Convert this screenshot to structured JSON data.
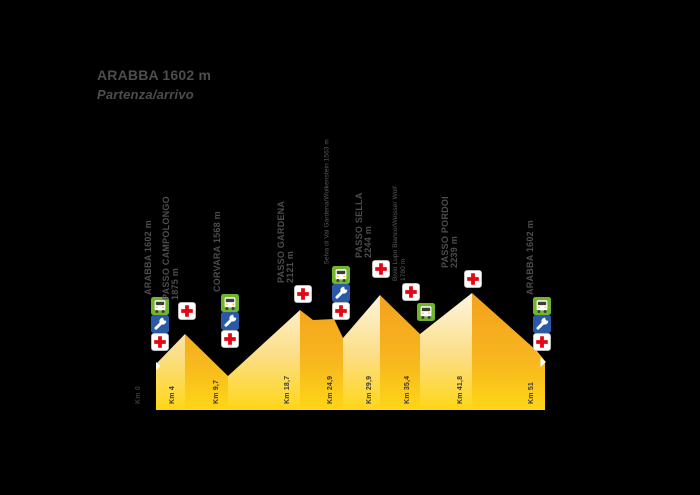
{
  "title": {
    "line1": "ARABBA 1602 m",
    "line2": "Partenza/arrivo"
  },
  "colors": {
    "background": "#000000",
    "title_text": "#4d4d4f",
    "label_text": "#4d4d4f",
    "km_text": "#3a3a39",
    "climb_face_top": "#fdf6e4",
    "climb_face_bottom": "#ffd616",
    "descent_face_top": "#f3a01e",
    "descent_face_bottom": "#ffd616",
    "medical_red": "#e30613",
    "mechanic_blue": "#2a5aa6",
    "shuttle_green": "#72b52c"
  },
  "chart_data": {
    "type": "area",
    "title": "ARABBA 1602 m — Partenza/arrivo",
    "xlabel": "Km",
    "ylabel": "m",
    "x_unit": "km",
    "y_unit": "m",
    "grid": false,
    "legend": false,
    "km_ticks": [
      "Km 0",
      "Km 4",
      "Km 9,7",
      "Km 18,7",
      "Km 24,9",
      "Km 29,9",
      "Km 35,4",
      "Km 41,8",
      "Km 51"
    ],
    "waypoints": [
      {
        "name": "Arabba",
        "km": 0,
        "elevation_m": 1602,
        "label_lines": [
          "ARABBA 1602 m"
        ],
        "label_style": "bold",
        "services": [
          "shuttle",
          "mechanic",
          "medical"
        ]
      },
      {
        "name": "Passo Campolongo",
        "km": 4,
        "elevation_m": 1875,
        "label_lines": [
          "PASSO CAMPOLONGO",
          "1875 m"
        ],
        "label_style": "bold",
        "services": [
          "medical"
        ]
      },
      {
        "name": "Corvara",
        "km": 9.7,
        "elevation_m": 1568,
        "label_lines": [
          "CORVARA 1568 m"
        ],
        "label_style": "bold",
        "services": [
          "shuttle",
          "mechanic",
          "medical"
        ]
      },
      {
        "name": "Passo Gardena",
        "km": 18.7,
        "elevation_m": 2121,
        "label_lines": [
          "PASSO GARDENA",
          "2121 m"
        ],
        "label_style": "bold",
        "services": [
          "medical"
        ]
      },
      {
        "name": "Selva di Val Gardena/Wolkenstein",
        "km": 24.9,
        "elevation_m": 1563,
        "label_lines": [
          "Selva di Val Gardena/Wolkenstein 1563 m"
        ],
        "label_style": "thin",
        "services": [
          "shuttle",
          "mechanic",
          "medical"
        ]
      },
      {
        "name": "Passo Sella",
        "km": 29.9,
        "elevation_m": 2244,
        "label_lines": [
          "PASSO SELLA",
          "2244 m"
        ],
        "label_style": "bold",
        "services": [
          "medical"
        ]
      },
      {
        "name": "Bivio Lupo Bianco/Weisser Wolf",
        "km": 35.4,
        "elevation_m": 1780,
        "label_lines": [
          "Bivio Lupo Bianco/Weisser Wolf",
          "1780 m"
        ],
        "label_style": "thin",
        "services": [
          "medical",
          "shuttle"
        ]
      },
      {
        "name": "Passo Pordoi",
        "km": 41.8,
        "elevation_m": 2239,
        "label_lines": [
          "PASSO PORDOI",
          "2239 m"
        ],
        "label_style": "bold",
        "services": [
          "medical"
        ]
      },
      {
        "name": "Arabba",
        "km": 51,
        "elevation_m": 1602,
        "label_lines": [
          "ARABBA 1602 m"
        ],
        "label_style": "bold",
        "services": [
          "shuttle",
          "mechanic",
          "medical"
        ]
      }
    ],
    "series": [
      {
        "name": "route elevation profile",
        "x_km": [
          0,
          4,
          9.7,
          18.7,
          24.9,
          29.9,
          35.4,
          41.8,
          51
        ],
        "y_m": [
          1602,
          1875,
          1568,
          2121,
          1563,
          2244,
          1780,
          2239,
          1602
        ]
      }
    ]
  },
  "icon_names": {
    "medical": "medical-cross-icon",
    "mechanic": "mechanic-wrench-icon",
    "shuttle": "shuttle-bus-icon"
  }
}
